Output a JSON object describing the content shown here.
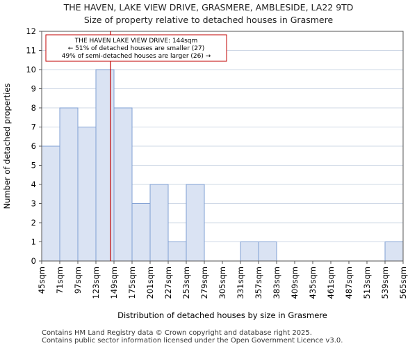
{
  "chart_data": {
    "type": "bar",
    "title_line1": "THE HAVEN, LAKE VIEW DRIVE, GRASMERE, AMBLESIDE, LA22 9TD",
    "title_line2": "Size of property relative to detached houses in Grasmere",
    "xlabel": "Distribution of detached houses by size in Grasmere",
    "ylabel": "Number of detached properties",
    "bin_edges": [
      45,
      71,
      97,
      123,
      149,
      175,
      201,
      227,
      253,
      279,
      305,
      331,
      357,
      383,
      409,
      435,
      461,
      487,
      513,
      539,
      565
    ],
    "tick_labels": [
      "45sqm",
      "71sqm",
      "97sqm",
      "123sqm",
      "149sqm",
      "175sqm",
      "201sqm",
      "227sqm",
      "253sqm",
      "279sqm",
      "305sqm",
      "331sqm",
      "357sqm",
      "383sqm",
      "409sqm",
      "435sqm",
      "461sqm",
      "487sqm",
      "513sqm",
      "539sqm",
      "565sqm"
    ],
    "values": [
      6,
      8,
      7,
      10,
      8,
      3,
      4,
      1,
      4,
      0,
      0,
      1,
      1,
      0,
      0,
      0,
      0,
      0,
      0,
      1
    ],
    "ylim": [
      0,
      12
    ],
    "yticks": [
      0,
      1,
      2,
      3,
      4,
      5,
      6,
      7,
      8,
      9,
      10,
      11,
      12
    ],
    "property_marker": {
      "value": 144,
      "line1": "THE HAVEN LAKE VIEW DRIVE: 144sqm",
      "line2": "← 51% of detached houses are smaller (27)",
      "line3": "49% of semi-detached houses are larger (26) →"
    },
    "colors": {
      "bar_fill": "#dae3f3",
      "bar_edge": "#7f9fd3",
      "marker": "#c00000",
      "grid": "#cfd8e6"
    }
  },
  "footer": {
    "line1": "Contains HM Land Registry data © Crown copyright and database right 2025.",
    "line2": "Contains public sector information licensed under the Open Government Licence v3.0."
  }
}
